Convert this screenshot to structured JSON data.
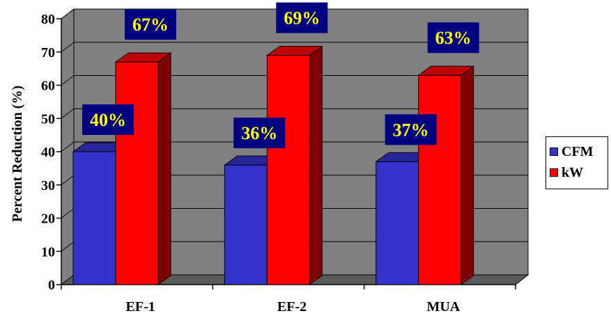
{
  "chart_data": {
    "type": "bar",
    "categories": [
      "EF-1",
      "EF-2",
      "MUA"
    ],
    "series": [
      {
        "name": "CFM",
        "values": [
          40,
          36,
          37
        ],
        "labels": [
          "40%",
          "36%",
          "37%"
        ],
        "color": "#3333cc"
      },
      {
        "name": "kW",
        "values": [
          67,
          69,
          63
        ],
        "labels": [
          "67%",
          "69%",
          "63%"
        ],
        "color": "#ff0000"
      }
    ],
    "ylabel": "Percent Reduction (%)",
    "xlabel": "",
    "title": "",
    "ylim": [
      0,
      80
    ],
    "yticks": [
      "0",
      "10",
      "20",
      "30",
      "40",
      "50",
      "60",
      "70",
      "80"
    ],
    "grid": true,
    "legend_position": "right",
    "three_d": true,
    "colors": {
      "plot_back": "#808080",
      "plot_floor": "#5a5a5a",
      "data_label_bg": "#000080",
      "data_label_text": "#ffff00"
    }
  }
}
